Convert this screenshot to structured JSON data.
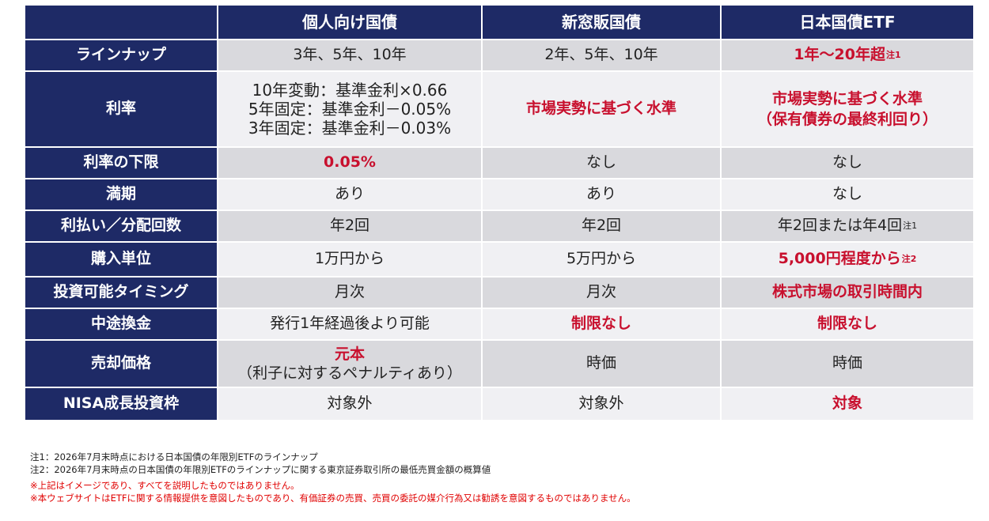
{
  "columns": [
    "個人向け国債",
    "新窓販国債",
    "日本国債ETF"
  ],
  "rows": [
    {
      "label": "ラインナップ",
      "c1": "3年、5年、10年",
      "c2": "2年、5年、10年",
      "c3": "1年～20年超",
      "c3_note": "注1"
    },
    {
      "label": "利率",
      "c1_lines": [
        "10年変動：基準金利×0.66",
        "5年固定：基準金利－0.05%",
        "3年固定：基準金利－0.03%"
      ],
      "c2": "市場実勢に基づく水準",
      "c3_lines": [
        "市場実勢に基づく水準",
        "（保有債券の最終利回り）"
      ]
    },
    {
      "label": "利率の下限",
      "c1": "0.05%",
      "c2": "なし",
      "c3": "なし"
    },
    {
      "label": "満期",
      "c1": "あり",
      "c2": "あり",
      "c3": "なし"
    },
    {
      "label": "利払い／分配回数",
      "c1": "年2回",
      "c2": "年2回",
      "c3": "年2回または年4回",
      "c3_note": "注1"
    },
    {
      "label": "購入単位",
      "c1": "1万円から",
      "c2": "5万円から",
      "c3": "5,000円程度から",
      "c3_note": "注2"
    },
    {
      "label": "投資可能タイミング",
      "c1": "月次",
      "c2": "月次",
      "c3": "株式市場の取引時間内"
    },
    {
      "label": "中途換金",
      "c1": "発行1年経過後より可能",
      "c2": "制限なし",
      "c3": "制限なし"
    },
    {
      "label": "売却価格",
      "c1_lines": [
        "元本",
        "（利子に対するペナルティあり）"
      ],
      "c2": "時価",
      "c3": "時価"
    },
    {
      "label": "NISA成長投資枠",
      "c1": "対象外",
      "c2": "対象外",
      "c3": "対象"
    }
  ],
  "notes": [
    "注1：2026年7月末時点における日本国債の年限別ETFのラインナップ",
    "注2：2026年7月末時点の日本国債の年限別ETFのラインナップに関する東京証券取引所の最低売買金額の概算値"
  ],
  "disclaimers": [
    "※上記はイメージであり、すべてを説明したものではありません。",
    "※本ウェブサイトはETFに関する情報提供を意図したものであり、有価証券の売買、売買の委託の媒介行為又は勧誘を意図するものではありません。"
  ],
  "colors": {
    "header": "#1e2a66",
    "highlight": "#c8102e",
    "shade": "#d9d9dd",
    "light": "#f0f0f3",
    "disclaimer": "#e00000"
  }
}
